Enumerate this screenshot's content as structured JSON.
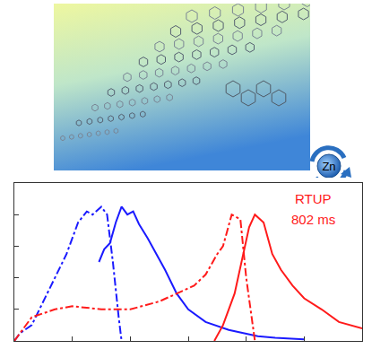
{
  "reagent": "Zn",
  "chart_data": {
    "type": "line",
    "tick_labels": false,
    "grid": false,
    "xlim": [
      0,
      6
    ],
    "xticks": [
      1,
      2,
      3,
      4,
      5
    ],
    "ylim": [
      0,
      1
    ],
    "yticks": [
      0.2,
      0.4,
      0.6,
      0.8
    ],
    "annotations": [
      "RTUP",
      "802 ms"
    ],
    "series": [
      {
        "color": "#1a1aff",
        "line_style": "dashdot",
        "x": [
          0,
          0.1,
          0.3,
          0.5,
          0.7,
          0.9,
          1.1,
          1.25,
          1.35,
          1.5,
          1.6,
          1.7,
          1.8,
          1.85
        ],
        "values": [
          0,
          0.05,
          0.1,
          0.25,
          0.4,
          0.55,
          0.75,
          0.82,
          0.8,
          0.85,
          0.8,
          0.5,
          0.15,
          0
        ]
      },
      {
        "color": "#1a1aff",
        "line_style": "solid",
        "x": [
          1.46,
          1.55,
          1.65,
          1.75,
          1.85,
          1.95,
          2.05,
          2.15,
          2.3,
          2.6,
          2.8,
          3.0,
          3.3,
          3.7,
          4.2,
          4.5,
          5.0
        ],
        "values": [
          0.5,
          0.58,
          0.62,
          0.75,
          0.85,
          0.8,
          0.82,
          0.74,
          0.65,
          0.45,
          0.3,
          0.2,
          0.12,
          0.07,
          0.03,
          0.02,
          0.01
        ]
      },
      {
        "color": "#ff1a1a",
        "line_style": "dashdot",
        "x": [
          0,
          0.3,
          0.7,
          1.0,
          1.5,
          2.0,
          2.5,
          2.8,
          3.1,
          3.3,
          3.5,
          3.6,
          3.75,
          3.9,
          4.0,
          4.15
        ],
        "values": [
          0,
          0.15,
          0.2,
          0.22,
          0.2,
          0.2,
          0.25,
          0.3,
          0.35,
          0.42,
          0.55,
          0.6,
          0.8,
          0.77,
          0.4,
          0
        ]
      },
      {
        "color": "#ff1a1a",
        "line_style": "solid",
        "x": [
          3.45,
          3.6,
          3.8,
          3.95,
          4.05,
          4.15,
          4.3,
          4.45,
          4.6,
          4.8,
          5.0,
          5.3,
          5.6,
          6.0
        ],
        "values": [
          0,
          0.1,
          0.3,
          0.55,
          0.72,
          0.8,
          0.75,
          0.55,
          0.45,
          0.35,
          0.27,
          0.2,
          0.12,
          0.08
        ]
      }
    ]
  }
}
